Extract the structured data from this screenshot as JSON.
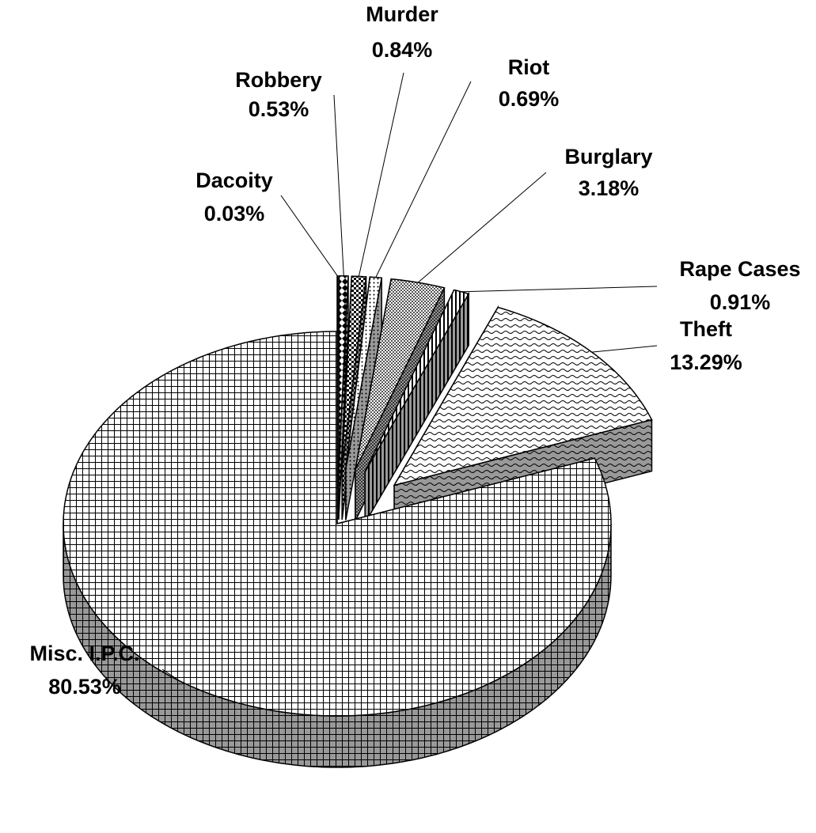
{
  "chart_data": {
    "type": "pie3d",
    "categories": [
      "Dacoity",
      "Robbery",
      "Murder",
      "Riot",
      "Burglary",
      "Rape Cases",
      "Theft",
      "Misc. I.P.C."
    ],
    "values": [
      0.03,
      0.53,
      0.84,
      0.69,
      3.18,
      0.91,
      13.29,
      80.53
    ],
    "value_labels": [
      "0.03%",
      "0.53%",
      "0.84%",
      "0.69%",
      "3.18%",
      "0.91%",
      "13.29%",
      "80.53%"
    ]
  }
}
